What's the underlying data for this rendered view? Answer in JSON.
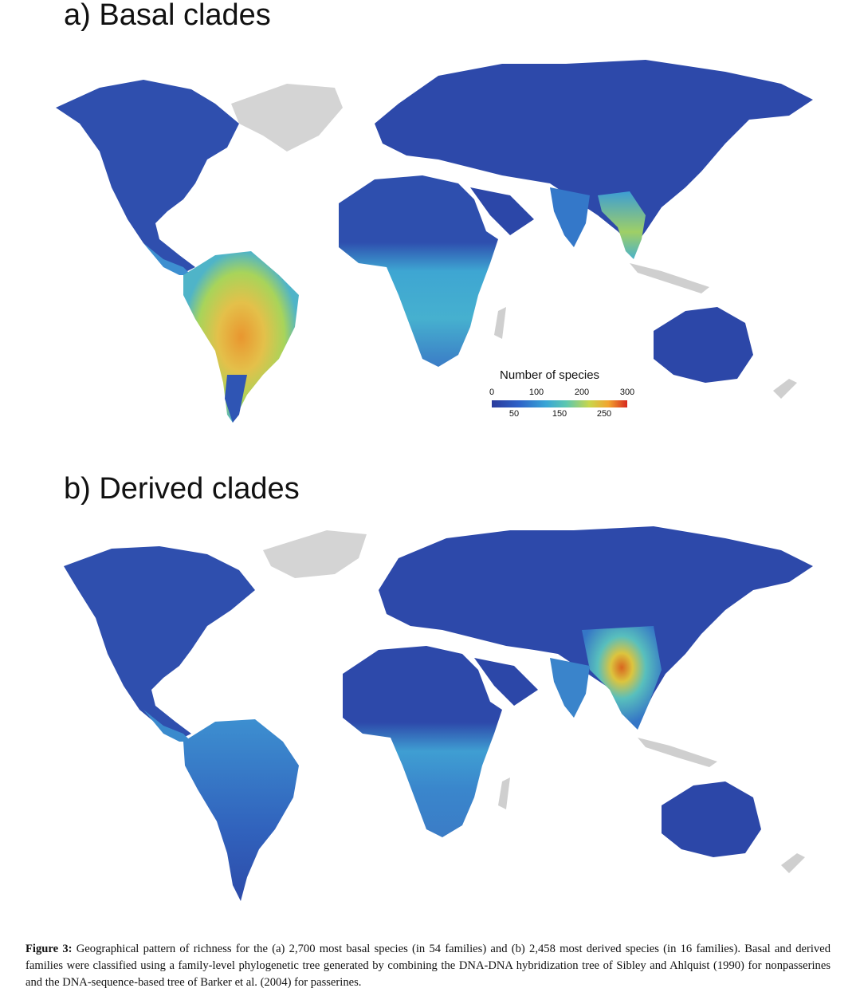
{
  "panels": [
    {
      "label": "a) Basal clades"
    },
    {
      "label": "b) Derived clades"
    }
  ],
  "legend": {
    "title": "Number of species",
    "ticks_top": [
      "0",
      "100",
      "200",
      "300"
    ],
    "ticks_bottom": [
      "50",
      "150",
      "250"
    ],
    "colors": [
      "#2a3b9c",
      "#2e62c8",
      "#39a6d6",
      "#5cc7b0",
      "#c9d64b",
      "#f2a52f",
      "#d7281f"
    ]
  },
  "caption": {
    "label": "Figure 3:",
    "text": "Geographical pattern of richness for the (a) 2,700 most basal species (in 54 families) and (b) 2,458 most derived species (in 16 families). Basal and derived families were classified using a family-level phylogenetic tree generated by combining the DNA-DNA hybridization tree of Sibley and Ahlquist (1990) for nonpasserines and the DNA-sequence-based tree of Barker et al. (2004) for passerines."
  }
}
